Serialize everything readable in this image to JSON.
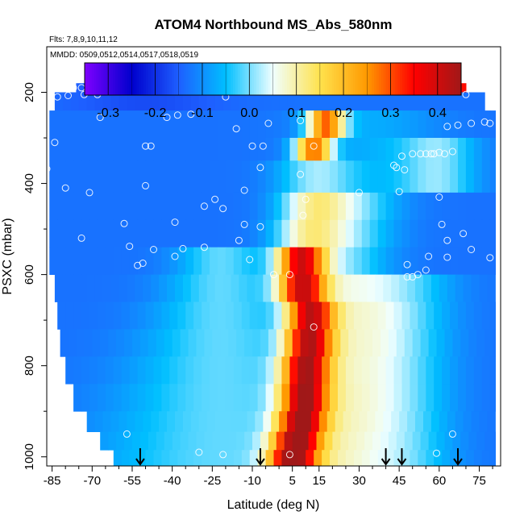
{
  "chart_data": {
    "type": "heatmap",
    "title": "ATOM4 Northbound MS_Abs_580nm",
    "flights_note": "Flts: 7,8,9,10,11,12",
    "dates_note": "MMDD: 0509,0512,0514,0517,0518,0519",
    "xlabel": "Latitude (deg N)",
    "ylabel": "PSXC (mbar)",
    "xlim": [
      -87,
      83
    ],
    "ylim": [
      1020,
      100
    ],
    "x_ticks": [
      -85,
      -70,
      -55,
      -40,
      -25,
      -10,
      5,
      15,
      30,
      45,
      60,
      75
    ],
    "y_ticks": [
      200,
      400,
      600,
      800,
      1000
    ],
    "colorbar": {
      "range": [
        -0.35,
        0.45
      ],
      "ticks": [
        -0.3,
        -0.2,
        -0.1,
        0.0,
        0.1,
        0.2,
        0.3,
        0.4
      ],
      "tick_labels": [
        "-0.3",
        "-0.2",
        "-0.1",
        "0.0",
        "0.1",
        "0.2",
        "0.3",
        "0.4"
      ],
      "colors": [
        "#7F00FF",
        "#0000CD",
        "#1E5FFF",
        "#00BFFF",
        "#F0FFFF",
        "#FFE24D",
        "#FF9900",
        "#FF0000",
        "#A01818"
      ]
    },
    "layers": [
      {
        "p_top": 180,
        "p_bot": 200,
        "x_min": -76,
        "x_max": 70
      },
      {
        "p_top": 200,
        "p_bot": 240,
        "x_min": -84,
        "x_max": 77
      },
      {
        "p_top": 240,
        "p_bot": 300,
        "x_min": -86,
        "x_max": 81
      },
      {
        "p_top": 300,
        "p_bot": 350,
        "x_min": -86,
        "x_max": 81
      },
      {
        "p_top": 350,
        "p_bot": 420,
        "x_min": -86,
        "x_max": 81
      },
      {
        "p_top": 420,
        "p_bot": 480,
        "x_min": -86,
        "x_max": 81
      },
      {
        "p_top": 480,
        "p_bot": 540,
        "x_min": -86,
        "x_max": 81
      },
      {
        "p_top": 540,
        "p_bot": 600,
        "x_min": -86,
        "x_max": 81
      },
      {
        "p_top": 600,
        "p_bot": 660,
        "x_min": -84,
        "x_max": 81
      },
      {
        "p_top": 660,
        "p_bot": 720,
        "x_min": -83,
        "x_max": 81
      },
      {
        "p_top": 720,
        "p_bot": 780,
        "x_min": -82,
        "x_max": 81
      },
      {
        "p_top": 780,
        "p_bot": 840,
        "x_min": -80,
        "x_max": 81
      },
      {
        "p_top": 840,
        "p_bot": 900,
        "x_min": -77,
        "x_max": 81
      },
      {
        "p_top": 900,
        "p_bot": 945,
        "x_min": -72,
        "x_max": 81
      },
      {
        "p_top": 945,
        "p_bot": 985,
        "x_min": -67,
        "x_max": 81
      },
      {
        "p_top": 985,
        "p_bot": 1020,
        "x_min": -62,
        "x_max": 81
      }
    ],
    "plume_axis": [
      {
        "p": 190,
        "lat": 70
      },
      {
        "p": 280,
        "lat": 11
      },
      {
        "p": 350,
        "lat": 14
      },
      {
        "p": 450,
        "lat": 12
      },
      {
        "p": 520,
        "lat": 10
      },
      {
        "p": 600,
        "lat": 7
      },
      {
        "p": 700,
        "lat": 12
      },
      {
        "p": 800,
        "lat": 10
      },
      {
        "p": 900,
        "lat": 9
      },
      {
        "p": 1000,
        "lat": 5
      }
    ],
    "observations": [
      {
        "lat": -77,
        "p": 190
      },
      {
        "lat": -74,
        "p": 190
      },
      {
        "lat": -71,
        "p": 192
      },
      {
        "lat": -67,
        "p": 195
      },
      {
        "lat": -83,
        "p": 210
      },
      {
        "lat": -79,
        "p": 207
      },
      {
        "lat": -73,
        "p": 205
      },
      {
        "lat": -68,
        "p": 205
      },
      {
        "lat": -20,
        "p": 210
      },
      {
        "lat": 40,
        "p": 185
      },
      {
        "lat": 70,
        "p": 205
      },
      {
        "lat": -67,
        "p": 255
      },
      {
        "lat": -42,
        "p": 255
      },
      {
        "lat": -38,
        "p": 250
      },
      {
        "lat": -33,
        "p": 248
      },
      {
        "lat": -16,
        "p": 280
      },
      {
        "lat": -4,
        "p": 268
      },
      {
        "lat": 8,
        "p": 262
      },
      {
        "lat": 63,
        "p": 275
      },
      {
        "lat": 67,
        "p": 272
      },
      {
        "lat": 72,
        "p": 268
      },
      {
        "lat": 77,
        "p": 265
      },
      {
        "lat": 79,
        "p": 268
      },
      {
        "lat": -84,
        "p": 310
      },
      {
        "lat": -50,
        "p": 318
      },
      {
        "lat": -48,
        "p": 318
      },
      {
        "lat": -10,
        "p": 318
      },
      {
        "lat": -6,
        "p": 318
      },
      {
        "lat": 13,
        "p": 318
      },
      {
        "lat": 46,
        "p": 340
      },
      {
        "lat": 50,
        "p": 335
      },
      {
        "lat": 53,
        "p": 335
      },
      {
        "lat": 55,
        "p": 335
      },
      {
        "lat": 57,
        "p": 335
      },
      {
        "lat": 58,
        "p": 335
      },
      {
        "lat": 60,
        "p": 332
      },
      {
        "lat": 62,
        "p": 335
      },
      {
        "lat": 65,
        "p": 330
      },
      {
        "lat": -87,
        "p": 368
      },
      {
        "lat": -50,
        "p": 405
      },
      {
        "lat": -7,
        "p": 365
      },
      {
        "lat": 43,
        "p": 360
      },
      {
        "lat": 44,
        "p": 365
      },
      {
        "lat": 47,
        "p": 370
      },
      {
        "lat": -80,
        "p": 410
      },
      {
        "lat": -71,
        "p": 420
      },
      {
        "lat": -28,
        "p": 450
      },
      {
        "lat": -24,
        "p": 435
      },
      {
        "lat": -13,
        "p": 415
      },
      {
        "lat": 8,
        "p": 380
      },
      {
        "lat": 10,
        "p": 435
      },
      {
        "lat": 30,
        "p": 420
      },
      {
        "lat": 45,
        "p": 418
      },
      {
        "lat": 60,
        "p": 430
      },
      {
        "lat": -58,
        "p": 488
      },
      {
        "lat": -39,
        "p": 485
      },
      {
        "lat": -21,
        "p": 455
      },
      {
        "lat": -13,
        "p": 490
      },
      {
        "lat": -7,
        "p": 495
      },
      {
        "lat": 9,
        "p": 470
      },
      {
        "lat": 61,
        "p": 490
      },
      {
        "lat": -74,
        "p": 520
      },
      {
        "lat": -56,
        "p": 538
      },
      {
        "lat": -47,
        "p": 545
      },
      {
        "lat": -36,
        "p": 543
      },
      {
        "lat": -28,
        "p": 540
      },
      {
        "lat": -15,
        "p": 525
      },
      {
        "lat": 63,
        "p": 525
      },
      {
        "lat": 69,
        "p": 510
      },
      {
        "lat": -53,
        "p": 580
      },
      {
        "lat": -51,
        "p": 575
      },
      {
        "lat": -39,
        "p": 560
      },
      {
        "lat": -11,
        "p": 567
      },
      {
        "lat": 48,
        "p": 578
      },
      {
        "lat": 56,
        "p": 560
      },
      {
        "lat": 63,
        "p": 562
      },
      {
        "lat": 72,
        "p": 545
      },
      {
        "lat": 79,
        "p": 563
      },
      {
        "lat": -86,
        "p": 612
      },
      {
        "lat": -2,
        "p": 600
      },
      {
        "lat": 4,
        "p": 600
      },
      {
        "lat": 48,
        "p": 605
      },
      {
        "lat": 50,
        "p": 605
      },
      {
        "lat": 52,
        "p": 600
      },
      {
        "lat": 55,
        "p": 590
      },
      {
        "lat": 13,
        "p": 715
      },
      {
        "lat": -83,
        "p": 815
      },
      {
        "lat": -57,
        "p": 950
      },
      {
        "lat": 65,
        "p": 950
      },
      {
        "lat": -30,
        "p": 990
      },
      {
        "lat": -21,
        "p": 995
      },
      {
        "lat": 4,
        "p": 995
      },
      {
        "lat": 59,
        "p": 992
      }
    ],
    "arrows_lat": [
      -52,
      -7,
      40,
      46,
      67
    ]
  }
}
